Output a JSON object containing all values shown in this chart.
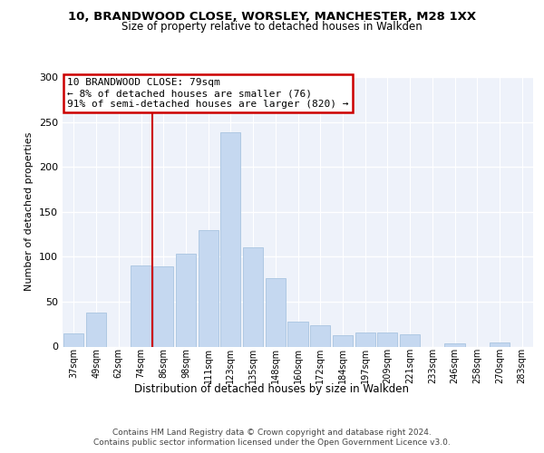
{
  "title1": "10, BRANDWOOD CLOSE, WORSLEY, MANCHESTER, M28 1XX",
  "title2": "Size of property relative to detached houses in Walkden",
  "xlabel": "Distribution of detached houses by size in Walkden",
  "ylabel": "Number of detached properties",
  "categories": [
    "37sqm",
    "49sqm",
    "62sqm",
    "74sqm",
    "86sqm",
    "98sqm",
    "111sqm",
    "123sqm",
    "135sqm",
    "148sqm",
    "160sqm",
    "172sqm",
    "184sqm",
    "197sqm",
    "209sqm",
    "221sqm",
    "233sqm",
    "246sqm",
    "258sqm",
    "270sqm",
    "283sqm"
  ],
  "values": [
    15,
    38,
    0,
    90,
    89,
    103,
    130,
    238,
    110,
    76,
    28,
    24,
    13,
    16,
    16,
    14,
    0,
    4,
    0,
    5,
    0
  ],
  "bar_color": "#c5d8f0",
  "bar_edge_color": "#a8c4e0",
  "annotation_title": "10 BRANDWOOD CLOSE: 79sqm",
  "annotation_line1": "← 8% of detached houses are smaller (76)",
  "annotation_line2": "91% of semi-detached houses are larger (820) →",
  "annotation_box_color": "#ffffff",
  "annotation_box_edge": "#cc0000",
  "vline_color": "#cc0000",
  "vline_x": 3.5,
  "ylim": [
    0,
    300
  ],
  "yticks": [
    0,
    50,
    100,
    150,
    200,
    250,
    300
  ],
  "footer1": "Contains HM Land Registry data © Crown copyright and database right 2024.",
  "footer2": "Contains public sector information licensed under the Open Government Licence v3.0.",
  "bg_color": "#eef2fa",
  "grid_color": "#ffffff"
}
